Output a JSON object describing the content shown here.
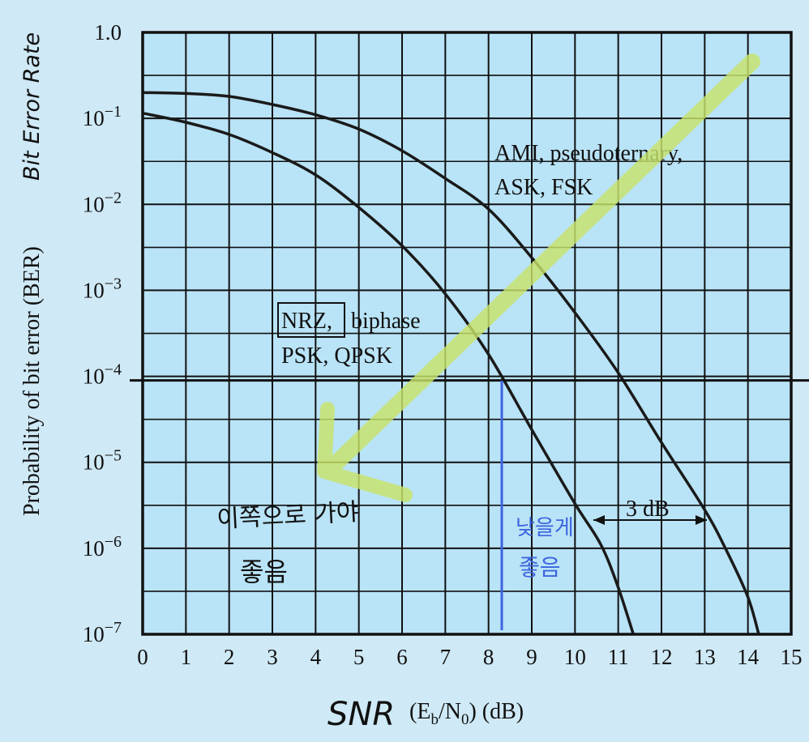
{
  "colors": {
    "page_bg": "#cfe9f6",
    "plot_bg": "#b9e3f6",
    "grid": "#111111",
    "curve": "#1a1a1a",
    "highlighter": "#c8e36a",
    "pen_blue": "#3b64e0",
    "pen_black": "#111111"
  },
  "chart_data": {
    "type": "line",
    "title": "",
    "xlabel": "(E",
    "xlabel_sub_b": "b",
    "xlabel_mid": "/N",
    "xlabel_sub_0": "0",
    "xlabel_end": ") (dB)",
    "xlabel_handwritten": "SNR",
    "ylabel": "Probability of bit error (BER)",
    "ylabel_handwritten": "Bit Error Rate",
    "xlim": [
      0,
      15
    ],
    "y_scale": "log",
    "ylim": [
      1e-07,
      1
    ],
    "x_ticks": [
      "0",
      "1",
      "2",
      "3",
      "4",
      "5",
      "6",
      "7",
      "8",
      "9",
      "10",
      "11",
      "12",
      "13",
      "14",
      "15"
    ],
    "y_ticks": [
      {
        "value": 1,
        "base": "1.0",
        "exp": ""
      },
      {
        "value": 0.1,
        "base": "10",
        "exp": "−1"
      },
      {
        "value": 0.01,
        "base": "10",
        "exp": "−2"
      },
      {
        "value": 0.001,
        "base": "10",
        "exp": "−3"
      },
      {
        "value": 0.0001,
        "base": "10",
        "exp": "−4"
      },
      {
        "value": 1e-05,
        "base": "10",
        "exp": "−5"
      },
      {
        "value": 1e-06,
        "base": "10",
        "exp": "−6"
      },
      {
        "value": 1e-07,
        "base": "10",
        "exp": "−7"
      }
    ],
    "grid": true,
    "series": [
      {
        "label_lines": [
          "NRZ, biphase",
          "PSK, QPSK"
        ],
        "boxed_word": "NRZ,",
        "points": [
          [
            0,
            0.115
          ],
          [
            1,
            0.09
          ],
          [
            2,
            0.065
          ],
          [
            3,
            0.04
          ],
          [
            4,
            0.022
          ],
          [
            5,
            0.0092
          ],
          [
            6,
            0.0033
          ],
          [
            7,
            0.00091
          ],
          [
            8,
            0.00018
          ],
          [
            9,
            2.4e-05
          ],
          [
            10,
            3.3e-06
          ],
          [
            10.6,
            1.1e-06
          ],
          [
            11,
            3.5e-07
          ],
          [
            11.35,
            1e-07
          ]
        ]
      },
      {
        "label_lines": [
          "AMI, pseudoternary,",
          "ASK, FSK"
        ],
        "points": [
          [
            0,
            0.2
          ],
          [
            1,
            0.195
          ],
          [
            2,
            0.18
          ],
          [
            3,
            0.145
          ],
          [
            4,
            0.11
          ],
          [
            5,
            0.075
          ],
          [
            6,
            0.042
          ],
          [
            7,
            0.02
          ],
          [
            8,
            0.0088
          ],
          [
            9,
            0.0024
          ],
          [
            10,
            0.00055
          ],
          [
            11,
            0.00011
          ],
          [
            12,
            1.7e-05
          ],
          [
            13,
            2.8e-06
          ],
          [
            13.5,
            9.5e-07
          ],
          [
            14,
            2.7e-07
          ],
          [
            14.25,
            1e-07
          ]
        ]
      }
    ],
    "annotations": {
      "gap_label": "3 dB",
      "hand_left_line1": "이쪽으로 가야",
      "hand_left_line2": "좋음",
      "hand_blue_line1": "낮을게",
      "hand_blue_line2": "좋음"
    }
  }
}
